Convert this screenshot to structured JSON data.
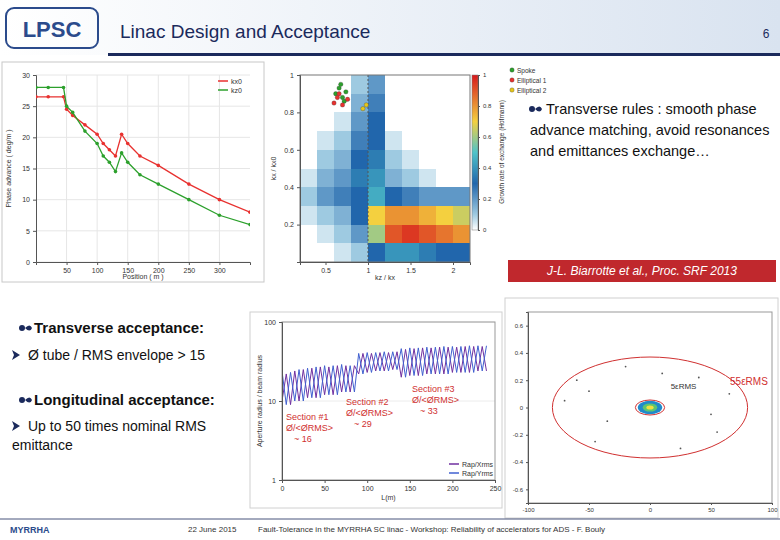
{
  "header": {
    "title": "Linac Design and Acceptance",
    "page": "6",
    "logo": "LPSC"
  },
  "text": {
    "rules": "Transverse rules : smooth phase advance matching, avoid resonances and emittances exchange…",
    "citation": "J-L. Biarrotte et al., Proc. SRF 2013",
    "bullets": [
      {
        "title": "Transverse acceptance:",
        "item": "Ø tube / RMS envelope > 15"
      },
      {
        "title": "Longitudinal acceptance:",
        "item": "Up to 50 times nominal RMS emittance"
      }
    ]
  },
  "footer": {
    "date": "22 June 2015",
    "text": "Fault-Tolerance in the MYRRHA SC linac - Workshop: Reliability of accelerators for ADS - F. Bouly",
    "logo": "MYRRHA"
  },
  "chart_data": [
    {
      "type": "line",
      "x_label": "Position ( m )",
      "y_label": "Phase advance ( deg/m )",
      "x": [
        0,
        20,
        45,
        50,
        60,
        80,
        100,
        110,
        120,
        130,
        140,
        150,
        170,
        200,
        250,
        300,
        350
      ],
      "series": [
        {
          "name": "kx0",
          "color": "#e8312f",
          "values": [
            26.5,
            26.5,
            26.5,
            24.5,
            23.5,
            22,
            20.5,
            19,
            18,
            17,
            20.5,
            19,
            17,
            15.5,
            12.5,
            10,
            8
          ]
        },
        {
          "name": "kz0",
          "color": "#2ca02c",
          "values": [
            28,
            28,
            28,
            25,
            24,
            21,
            19,
            17,
            16,
            14.5,
            17.5,
            16,
            14,
            12.5,
            10,
            7.5,
            6
          ]
        }
      ],
      "marker": "circle",
      "xlim": [
        0,
        350
      ],
      "xticks": [
        50,
        100,
        150,
        200,
        250,
        300
      ],
      "ylim": [
        0,
        30
      ],
      "yticks": [
        0,
        5,
        10,
        15,
        20,
        25,
        30
      ],
      "grid": true,
      "legend": "upper right"
    },
    {
      "type": "heatmap",
      "x_label": "kz / kx",
      "y_label": "kx / kx0",
      "colorbar_label": "Growth rate of exchange (Hofmann)",
      "x_edges": [
        0.2,
        0.4,
        0.6,
        0.8,
        1,
        1.2,
        1.4,
        1.6,
        1.8,
        2,
        2.2
      ],
      "y_edges": [
        0,
        0.1,
        0.2,
        0.3,
        0.4,
        0.5,
        0.6,
        0.7,
        0.8,
        0.9,
        1
      ],
      "cells": [
        [
          0,
          0,
          0.05,
          0.1,
          0.3,
          0.4,
          0.4,
          0.35,
          0.3,
          0.3
        ],
        [
          0,
          0.05,
          0.1,
          0.2,
          0.6,
          0.9,
          0.95,
          0.9,
          0.85,
          0.8
        ],
        [
          0.05,
          0.1,
          0.15,
          0.3,
          0.7,
          0.8,
          0.8,
          0.75,
          0.7,
          0.65
        ],
        [
          0.1,
          0.2,
          0.25,
          0.3,
          0.45,
          0.3,
          0.25,
          0.2,
          0.2,
          0.2
        ],
        [
          0.05,
          0.15,
          0.2,
          0.35,
          0.4,
          0.15,
          0.1,
          0.05,
          0,
          0
        ],
        [
          0,
          0.1,
          0.15,
          0.3,
          0.35,
          0.1,
          0.05,
          0,
          0,
          0
        ],
        [
          0,
          0.05,
          0.1,
          0.25,
          0.3,
          0.05,
          0,
          0,
          0,
          0
        ],
        [
          0,
          0,
          0.05,
          0.2,
          0.3,
          0,
          0,
          0,
          0,
          0
        ],
        [
          0,
          0,
          0,
          0.15,
          0.25,
          0,
          0,
          0,
          0,
          0
        ],
        [
          0,
          0,
          0,
          0.1,
          0.2,
          0,
          0,
          0,
          0,
          0
        ]
      ],
      "colorbar": {
        "range": [
          0,
          1
        ],
        "ticks": [
          0,
          0.2,
          0.4,
          0.6,
          0.8,
          1
        ]
      },
      "xlim": [
        0.2,
        2.2
      ],
      "xticks": [
        0.5,
        1,
        1.5,
        2
      ],
      "ylim": [
        0,
        1
      ],
      "yticks": [
        0.2,
        0.4,
        0.6,
        0.8,
        1
      ],
      "resonance": 1,
      "series": [
        {
          "name": "Spoke",
          "color": "#2ca02c",
          "marker": "circle",
          "x": [
            0.62,
            0.66,
            0.7,
            0.74,
            0.68,
            0.72
          ],
          "y": [
            0.9,
            0.93,
            0.88,
            0.91,
            0.95,
            0.86
          ]
        },
        {
          "name": "Elliptical 1",
          "color": "#e8312f",
          "marker": "circle",
          "x": [
            0.6,
            0.64,
            0.7,
            0.76,
            0.66
          ],
          "y": [
            0.85,
            0.88,
            0.84,
            0.87,
            0.9
          ]
        },
        {
          "name": "Elliptical 2",
          "color": "#e6c619",
          "marker": "circle",
          "x": [
            0.94,
            0.98
          ],
          "y": [
            0.82,
            0.84
          ]
        }
      ],
      "legend": "upper right"
    },
    {
      "type": "line",
      "x_label": "L(m)",
      "y_label": "Aperture radius / beam radius",
      "log": "y",
      "x": [
        0,
        5,
        10,
        15,
        20,
        25,
        30,
        35,
        40,
        45,
        50,
        55,
        60,
        65,
        70,
        75,
        80,
        85,
        90,
        95,
        100,
        105,
        110,
        115,
        120,
        125,
        130,
        135,
        140,
        145,
        150,
        155,
        160,
        165,
        170,
        175,
        180,
        185,
        190,
        195,
        200,
        205,
        210,
        215,
        220,
        225,
        230,
        235,
        240
      ],
      "series": [
        {
          "name": "Rap/Xrms",
          "color": "#7030a0",
          "values": [
            10,
            22,
            9,
            24,
            10,
            25,
            11,
            26,
            11,
            27,
            12,
            27,
            12,
            28,
            13,
            28,
            13,
            28,
            22,
            40,
            23,
            40,
            24,
            41,
            24,
            41,
            25,
            42,
            20,
            45,
            21,
            46,
            21,
            47,
            22,
            47,
            22,
            48,
            22,
            48,
            23,
            48,
            23,
            49,
            23,
            49,
            24,
            49,
            24
          ]
        },
        {
          "name": "Rap/Yrms",
          "color": "#4060d0",
          "values": [
            24,
            9,
            23,
            10,
            25,
            10,
            26,
            11,
            27,
            11,
            28,
            12,
            28,
            12,
            29,
            13,
            28,
            13,
            40,
            22,
            41,
            23,
            41,
            24,
            42,
            24,
            42,
            25,
            46,
            20,
            47,
            21,
            47,
            21,
            48,
            22,
            48,
            22,
            49,
            22,
            49,
            23,
            49,
            23,
            50,
            23,
            50,
            24,
            50
          ]
        }
      ],
      "annotations": [
        {
          "title": "Section #1",
          "ratio": "Ø/<ØRMS>",
          "value": "~ 16"
        },
        {
          "title": "Section #2",
          "ratio": "Ø/<ØRMS>",
          "value": "~ 29"
        },
        {
          "title": "Section #3",
          "ratio": "Ø/<ØRMS>",
          "value": "~ 33"
        }
      ],
      "xlim": [
        0,
        250
      ],
      "xticks": [
        0,
        50,
        100,
        150,
        200,
        250
      ],
      "ylim": [
        1,
        100
      ],
      "yticks": [
        1,
        10,
        100
      ],
      "legend": "lower right"
    },
    {
      "type": "scatter",
      "core": [
        {
          "rx": 10,
          "ry": 0.05,
          "value": 0.2
        },
        {
          "rx": 6,
          "ry": 0.03,
          "value": 0.5
        },
        {
          "rx": 3,
          "ry": 0.015,
          "value": 1
        }
      ],
      "halo": {
        "x": [
          -60,
          -45,
          40,
          55,
          -20,
          25,
          -70,
          65,
          -35,
          10,
          50,
          -50
        ],
        "y": [
          0.2,
          -0.25,
          0.22,
          -0.18,
          0.3,
          -0.3,
          0.05,
          0.1,
          -0.1,
          0.25,
          -0.05,
          0.12
        ]
      },
      "ellipses": [
        {
          "label": "5εRMS",
          "rx": 12,
          "ry": 0.055
        },
        {
          "label": "55εRMS",
          "rx": 80,
          "ry": 0.37
        }
      ],
      "xlim": [
        -100,
        100
      ],
      "xticks": [
        -100,
        -50,
        0,
        50,
        100
      ],
      "ylim": [
        -0.7,
        0.7
      ],
      "yticks": [
        -0.6,
        -0.4,
        -0.2,
        0,
        0.2,
        0.4,
        0.6
      ]
    }
  ]
}
